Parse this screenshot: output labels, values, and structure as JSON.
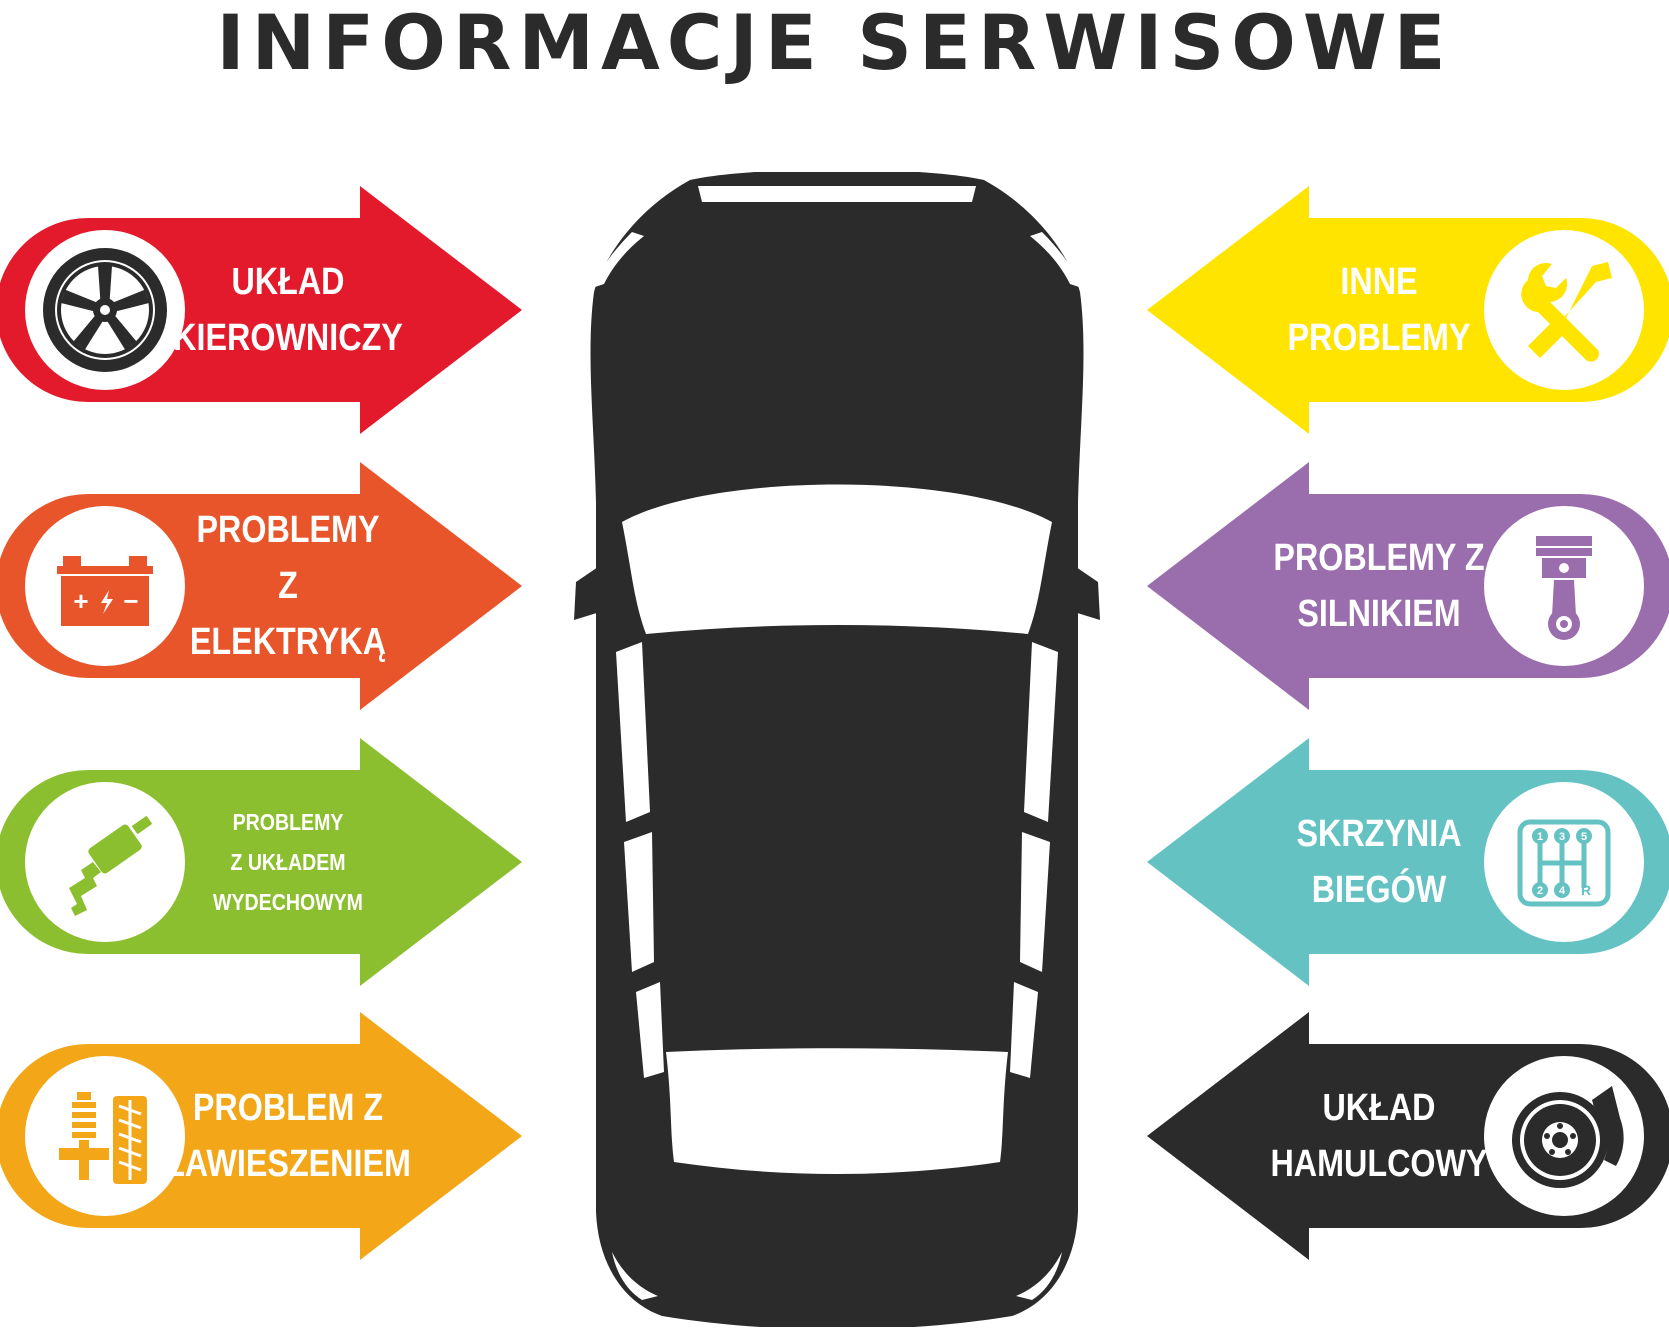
{
  "title": "INFORMACJE SERWISOWE",
  "left_items": [
    {
      "line1": "UKŁAD",
      "line2": "KIEROWNICZY",
      "color": "#e3192c",
      "icon": "wheel-icon"
    },
    {
      "line1": "PROBLEMY",
      "line2": "Z ELEKTRYKĄ",
      "color": "#e8552a",
      "icon": "battery-icon"
    },
    {
      "line1": "PROBLEMY",
      "line2": "Z UKŁADEM WYDECHOWYM",
      "color": "#8cbf2f",
      "icon": "exhaust-icon"
    },
    {
      "line1": "PROBLEM Z",
      "line2": "ZAWIESZENIEM",
      "color": "#f2a618",
      "icon": "suspension-icon"
    }
  ],
  "right_items": [
    {
      "line1": "INNE",
      "line2": "PROBLEMY",
      "color": "#ffe400",
      "icon": "tools-icon"
    },
    {
      "line1": "PROBLEMY Z",
      "line2": "SILNIKIEM",
      "color": "#9a6ead",
      "icon": "piston-icon"
    },
    {
      "line1": "SKRZYNIA",
      "line2": "BIEGÓW",
      "color": "#65c2c2",
      "icon": "gearbox-icon"
    },
    {
      "line1": "UKŁAD",
      "line2": "HAMULCOWY",
      "color": "#2b2b2b",
      "icon": "brake-disc-icon"
    }
  ],
  "gear_labels": {
    "g1": "1",
    "g3": "3",
    "g5": "5",
    "g2": "2",
    "g4": "4",
    "gR": "R"
  },
  "battery_labels": {
    "plus": "+",
    "minus": "−"
  },
  "car": {
    "color": "#2b2b2b",
    "window_color": "#ffffff",
    "icon": "car-top-view-icon"
  }
}
